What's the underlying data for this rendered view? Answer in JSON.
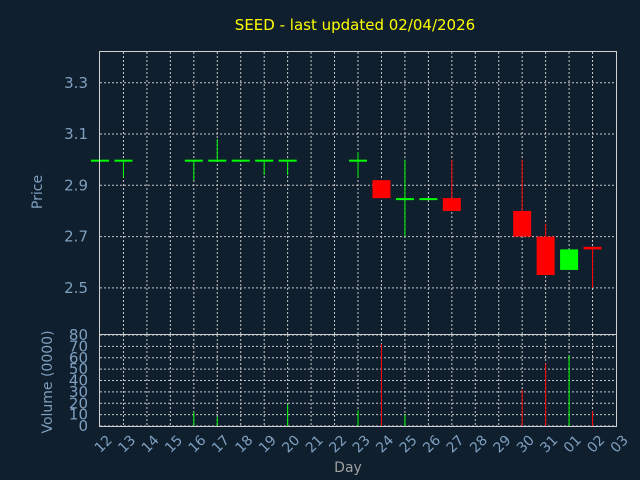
{
  "chart_data": [
    {
      "type": "candlestick",
      "title": "SEED - last updated 02/04/2026",
      "ylabel": "Price",
      "ylim": [
        2.32,
        3.42
      ],
      "yticks": [
        "2.5",
        "2.7",
        "2.9",
        "3.1",
        "3.3"
      ],
      "categories": [
        "12",
        "13",
        "14",
        "15",
        "16",
        "17",
        "18",
        "19",
        "20",
        "21",
        "22",
        "23",
        "24",
        "25",
        "26",
        "27",
        "28",
        "29",
        "30",
        "31",
        "01",
        "02",
        "03"
      ],
      "candles": [
        {
          "day": "12",
          "open": 3.0,
          "high": 3.0,
          "low": 3.0,
          "close": 3.0
        },
        {
          "day": "13",
          "open": 3.0,
          "high": 3.0,
          "low": 2.93,
          "close": 3.0
        },
        {
          "day": "16",
          "open": 3.0,
          "high": 3.0,
          "low": 2.92,
          "close": 3.0
        },
        {
          "day": "17",
          "open": 3.0,
          "high": 3.08,
          "low": 3.0,
          "close": 3.0
        },
        {
          "day": "18",
          "open": 3.0,
          "high": 3.0,
          "low": 3.0,
          "close": 3.0
        },
        {
          "day": "19",
          "open": 3.0,
          "high": 3.0,
          "low": 2.94,
          "close": 3.0
        },
        {
          "day": "20",
          "open": 3.0,
          "high": 3.0,
          "low": 2.94,
          "close": 3.0
        },
        {
          "day": "23",
          "open": 3.0,
          "high": 3.03,
          "low": 2.93,
          "close": 3.0
        },
        {
          "day": "24",
          "open": 2.92,
          "high": 2.92,
          "low": 2.85,
          "close": 2.85
        },
        {
          "day": "25",
          "open": 2.85,
          "high": 3.0,
          "low": 2.7,
          "close": 2.85
        },
        {
          "day": "26",
          "open": 2.85,
          "high": 2.85,
          "low": 2.85,
          "close": 2.85
        },
        {
          "day": "27",
          "open": 2.85,
          "high": 3.0,
          "low": 2.8,
          "close": 2.8
        },
        {
          "day": "30",
          "open": 2.8,
          "high": 3.0,
          "low": 2.7,
          "close": 2.7
        },
        {
          "day": "31",
          "open": 2.7,
          "high": 2.75,
          "low": 2.55,
          "close": 2.55
        },
        {
          "day": "01",
          "open": 2.57,
          "high": 2.65,
          "low": 2.57,
          "close": 2.65
        },
        {
          "day": "02",
          "open": 2.66,
          "high": 2.66,
          "low": 2.5,
          "close": 2.65
        }
      ]
    },
    {
      "type": "bar",
      "ylabel": "Volume (0000)",
      "xlabel": "Day",
      "ylim": [
        0,
        80
      ],
      "yticks": [
        "0",
        "10",
        "20",
        "30",
        "40",
        "50",
        "60",
        "70",
        "80"
      ],
      "categories": [
        "12",
        "13",
        "14",
        "15",
        "16",
        "17",
        "18",
        "19",
        "20",
        "21",
        "22",
        "23",
        "24",
        "25",
        "26",
        "27",
        "28",
        "29",
        "30",
        "31",
        "01",
        "02",
        "03"
      ],
      "values": [
        {
          "day": "16",
          "value": 12,
          "color": "#00ff00"
        },
        {
          "day": "17",
          "value": 8,
          "color": "#00ff00"
        },
        {
          "day": "20",
          "value": 19,
          "color": "#00ff00"
        },
        {
          "day": "23",
          "value": 14,
          "color": "#00ff00"
        },
        {
          "day": "24",
          "value": 72,
          "color": "#ff0000"
        },
        {
          "day": "25",
          "value": 10,
          "color": "#00ff00"
        },
        {
          "day": "30",
          "value": 32,
          "color": "#ff0000"
        },
        {
          "day": "31",
          "value": 55,
          "color": "#ff0000"
        },
        {
          "day": "01",
          "value": 62,
          "color": "#00ff00"
        },
        {
          "day": "02",
          "value": 13,
          "color": "#ff0000"
        }
      ]
    }
  ],
  "colors": {
    "up": "#00ff00",
    "down": "#ff0000",
    "background": "#0f1f2e",
    "grid": "#c8c8c8",
    "text": "#7f9fbf",
    "title": "#ffff00"
  }
}
